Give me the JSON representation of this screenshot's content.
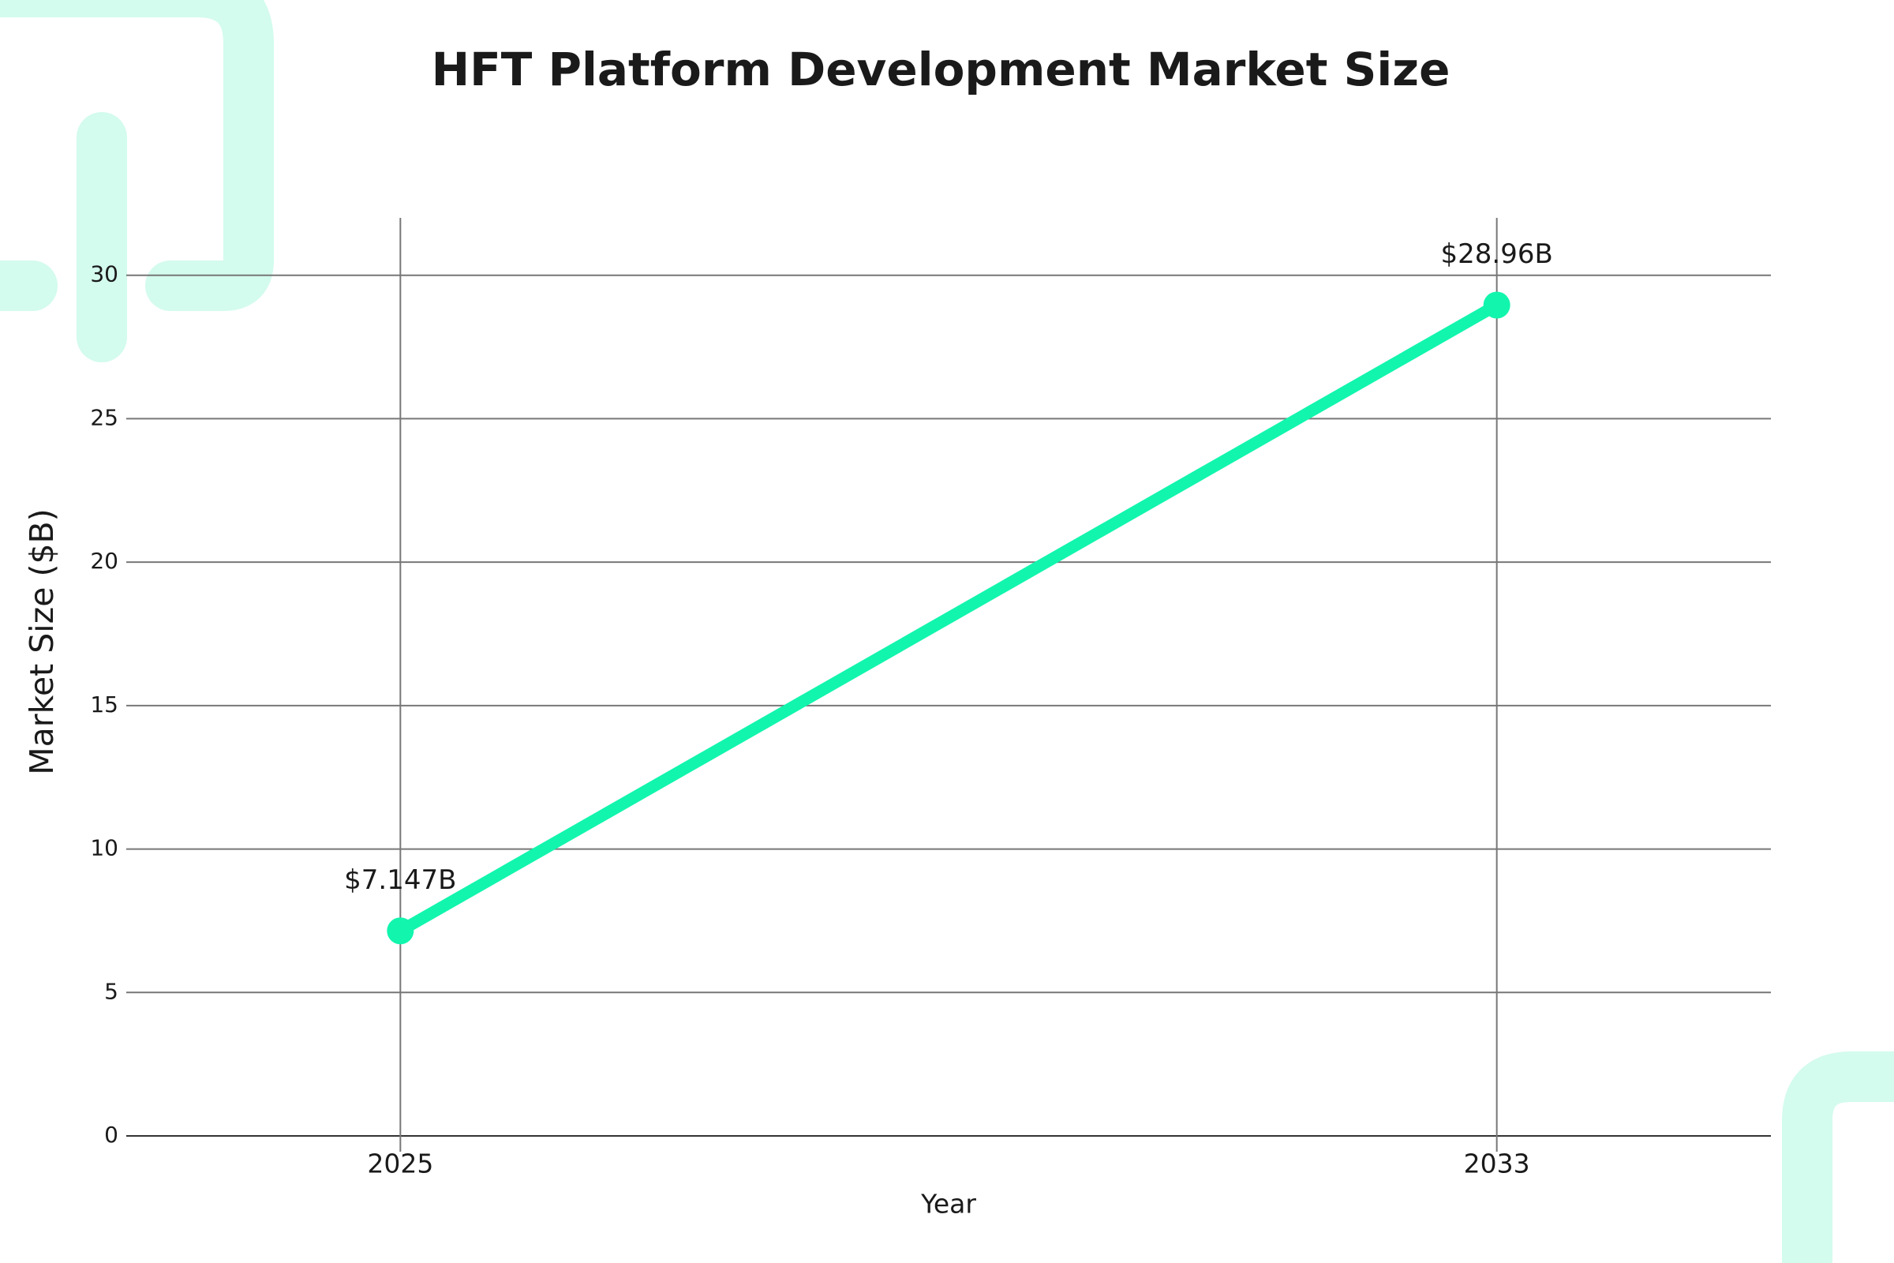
{
  "chart_data": {
    "type": "line",
    "title": "HFT Platform Development Market Size",
    "x_label": "Year",
    "y_label": "Market Size ($B)",
    "x": [
      2025,
      2033
    ],
    "values": [
      7.147,
      28.96
    ],
    "value_labels": [
      "$7.147B",
      "$28.96B"
    ],
    "color": "#12f5ad",
    "xlim": [
      2023,
      2035
    ],
    "xticks": [
      2025,
      2033
    ],
    "ylim": [
      0,
      32
    ],
    "yticks": [
      0,
      5,
      10,
      15,
      20,
      25,
      30
    ],
    "grid": true
  }
}
